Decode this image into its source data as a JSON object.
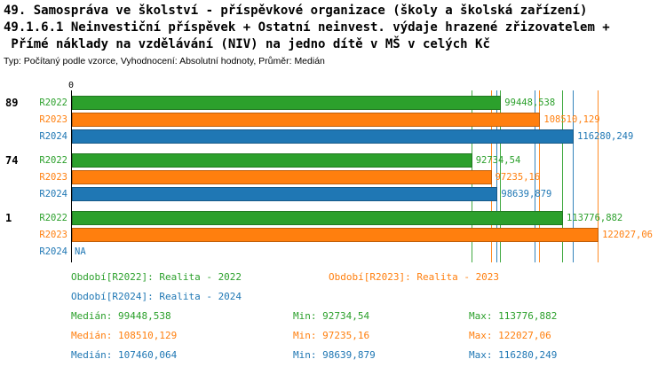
{
  "title": {
    "line1": "49. Samospráva ve školství - příspěvkové organizace (školy a školská zařízení)",
    "line2": "49.1.6.1 Neinvestiční příspěvek + Ostatní neinvest. výdaje hrazené zřizovatelem +",
    "line3": " Přímé náklady na vzdělávání (NIV) na jedno dítě v MŠ v celých Kč",
    "subtitle": "Typ: Počítaný podle vzorce, Vyhodnocení: Absolutní hodnoty, Průměr: Medián"
  },
  "colors": {
    "r2022": "#2CA02C",
    "r2023": "#FF7F0E",
    "r2024": "#1F77B4",
    "axis": "#000000",
    "background": "#FFFFFF"
  },
  "chart_data": {
    "type": "bar",
    "orientation": "horizontal",
    "unit": "Kč",
    "axis_origin_label": "0",
    "axis_min": 0,
    "axis_max": 135800,
    "series": [
      "R2022",
      "R2023",
      "R2024"
    ],
    "series_colors": {
      "R2022": "#2CA02C",
      "R2023": "#FF7F0E",
      "R2024": "#1F77B4"
    },
    "groups": [
      {
        "label": "89",
        "values": [
          {
            "series": "R2022",
            "value": 99448.538,
            "label": "99448,538"
          },
          {
            "series": "R2023",
            "value": 108510.129,
            "label": "108510,129"
          },
          {
            "series": "R2024",
            "value": 116280.249,
            "label": "116280,249"
          }
        ]
      },
      {
        "label": "74",
        "values": [
          {
            "series": "R2022",
            "value": 92734.54,
            "label": "92734,54"
          },
          {
            "series": "R2023",
            "value": 97235.16,
            "label": "97235,16"
          },
          {
            "series": "R2024",
            "value": 98639.879,
            "label": "98639,879"
          }
        ]
      },
      {
        "label": "1",
        "values": [
          {
            "series": "R2022",
            "value": 113776.882,
            "label": "113776,882"
          },
          {
            "series": "R2023",
            "value": 122027.06,
            "label": "122027,06"
          },
          {
            "series": "R2024",
            "value": null,
            "label": "NA"
          }
        ]
      }
    ],
    "series_stats": {
      "R2022": {
        "median": 99448.538,
        "min": 92734.54,
        "max": 113776.882
      },
      "R2023": {
        "median": 108510.129,
        "min": 97235.16,
        "max": 122027.06
      },
      "R2024": {
        "median": 107460.064,
        "min": 98639.879,
        "max": 116280.249
      }
    }
  },
  "legend": {
    "r2022": "Období[R2022]: Realita - 2022",
    "r2023": "Období[R2023]: Realita - 2023",
    "r2024": "Období[R2024]: Realita - 2024"
  },
  "stats_panel": {
    "r2022": {
      "median": "Medián: 99448,538",
      "min": "Min: 92734,54",
      "max": "Max: 113776,882"
    },
    "r2023": {
      "median": "Medián: 108510,129",
      "min": "Min: 97235,16",
      "max": "Max: 122027,06"
    },
    "r2024": {
      "median": "Medián: 107460,064",
      "min": "Min: 98639,879",
      "max": "Max: 116280,249"
    }
  }
}
